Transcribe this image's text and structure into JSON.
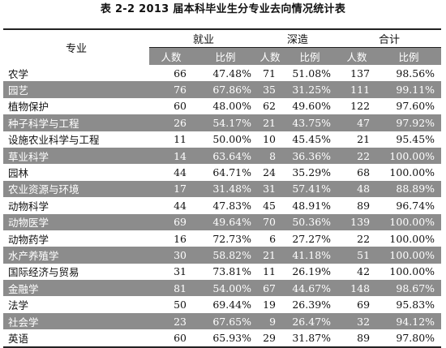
{
  "title": "表 2-2 2013 届本科毕业生分专业去向情况统计表",
  "header": {
    "major": "专业",
    "groups": [
      "就业",
      "深造",
      "合计"
    ],
    "sub": [
      "人数",
      "比例",
      "人数",
      "比例",
      "人数",
      "比例"
    ]
  },
  "rows": [
    {
      "major": "农学",
      "emp_n": "66",
      "emp_p": "47.48%",
      "stu_n": "71",
      "stu_p": "51.08%",
      "tot_n": "137",
      "tot_p": "98.56%"
    },
    {
      "major": "园艺",
      "emp_n": "76",
      "emp_p": "67.86%",
      "stu_n": "35",
      "stu_p": "31.25%",
      "tot_n": "111",
      "tot_p": "99.11%"
    },
    {
      "major": "植物保护",
      "emp_n": "60",
      "emp_p": "48.00%",
      "stu_n": "62",
      "stu_p": "49.60%",
      "tot_n": "122",
      "tot_p": "97.60%"
    },
    {
      "major": "种子科学与工程",
      "emp_n": "26",
      "emp_p": "54.17%",
      "stu_n": "21",
      "stu_p": "43.75%",
      "tot_n": "47",
      "tot_p": "97.92%"
    },
    {
      "major": "设施农业科学与工程",
      "emp_n": "11",
      "emp_p": "50.00%",
      "stu_n": "10",
      "stu_p": "45.45%",
      "tot_n": "21",
      "tot_p": "95.45%"
    },
    {
      "major": "草业科学",
      "emp_n": "14",
      "emp_p": "63.64%",
      "stu_n": "8",
      "stu_p": "36.36%",
      "tot_n": "22",
      "tot_p": "100.00%"
    },
    {
      "major": "园林",
      "emp_n": "44",
      "emp_p": "64.71%",
      "stu_n": "24",
      "stu_p": "35.29%",
      "tot_n": "68",
      "tot_p": "100.00%"
    },
    {
      "major": "农业资源与环境",
      "emp_n": "17",
      "emp_p": "31.48%",
      "stu_n": "31",
      "stu_p": "57.41%",
      "tot_n": "48",
      "tot_p": "88.89%"
    },
    {
      "major": "动物科学",
      "emp_n": "44",
      "emp_p": "47.83%",
      "stu_n": "45",
      "stu_p": "48.91%",
      "tot_n": "89",
      "tot_p": "96.74%"
    },
    {
      "major": "动物医学",
      "emp_n": "69",
      "emp_p": "49.64%",
      "stu_n": "70",
      "stu_p": "50.36%",
      "tot_n": "139",
      "tot_p": "100.00%"
    },
    {
      "major": "动物药学",
      "emp_n": "16",
      "emp_p": "72.73%",
      "stu_n": "6",
      "stu_p": "27.27%",
      "tot_n": "22",
      "tot_p": "100.00%"
    },
    {
      "major": "水产养殖学",
      "emp_n": "30",
      "emp_p": "58.82%",
      "stu_n": "21",
      "stu_p": "41.18%",
      "tot_n": "51",
      "tot_p": "100.00%"
    },
    {
      "major": "国际经济与贸易",
      "emp_n": "31",
      "emp_p": "73.81%",
      "stu_n": "11",
      "stu_p": "26.19%",
      "tot_n": "42",
      "tot_p": "100.00%"
    },
    {
      "major": "金融学",
      "emp_n": "81",
      "emp_p": "54.00%",
      "stu_n": "67",
      "stu_p": "44.67%",
      "tot_n": "148",
      "tot_p": "98.67%"
    },
    {
      "major": "法学",
      "emp_n": "50",
      "emp_p": "69.44%",
      "stu_n": "19",
      "stu_p": "26.39%",
      "tot_n": "69",
      "tot_p": "95.83%"
    },
    {
      "major": "社会学",
      "emp_n": "23",
      "emp_p": "67.65%",
      "stu_n": "9",
      "stu_p": "26.47%",
      "tot_n": "32",
      "tot_p": "94.12%"
    },
    {
      "major": "英语",
      "emp_n": "60",
      "emp_p": "65.93%",
      "stu_n": "29",
      "stu_p": "31.87%",
      "tot_n": "89",
      "tot_p": "97.80%"
    }
  ],
  "colors": {
    "shade": "#8c8c8c",
    "text": "#111111",
    "rule": "#222222"
  }
}
